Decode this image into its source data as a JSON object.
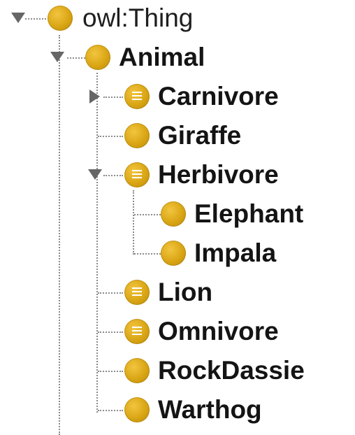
{
  "tree": {
    "root": {
      "label": "owl:Thing",
      "expanded": true,
      "icon": "class-circle-icon"
    },
    "animal": {
      "label": "Animal",
      "expanded": true,
      "icon": "class-circle-icon"
    },
    "children": [
      {
        "label": "Carnivore",
        "icon": "defined-class-icon",
        "toggle": "collapsed"
      },
      {
        "label": "Giraffe",
        "icon": "class-circle-icon",
        "toggle": "none"
      },
      {
        "label": "Herbivore",
        "icon": "defined-class-icon",
        "toggle": "expanded"
      },
      {
        "label": "Elephant",
        "icon": "class-circle-icon",
        "toggle": "none"
      },
      {
        "label": "Impala",
        "icon": "class-circle-icon",
        "toggle": "none"
      },
      {
        "label": "Lion",
        "icon": "defined-class-icon",
        "toggle": "none"
      },
      {
        "label": "Omnivore",
        "icon": "defined-class-icon",
        "toggle": "none"
      },
      {
        "label": "RockDassie",
        "icon": "class-circle-icon",
        "toggle": "none"
      },
      {
        "label": "Warthog",
        "icon": "class-circle-icon",
        "toggle": "none"
      }
    ]
  },
  "colors": {
    "icon_fill": "#d9a514",
    "guide_line": "#8a8a8a",
    "toggle": "#666666",
    "text": "#141414"
  }
}
